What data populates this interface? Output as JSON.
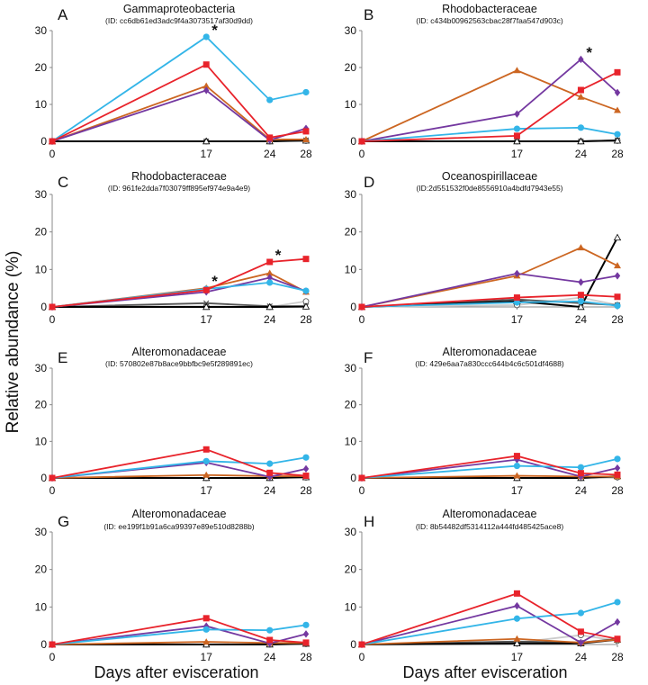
{
  "figure": {
    "ylabel": "Relative abundance (%)",
    "xlabel": "Days after evisceration"
  },
  "series_styles": [
    {
      "key": "cyan",
      "color": "#33b5e8",
      "marker": "circle"
    },
    {
      "key": "red",
      "color": "#e8232b",
      "marker": "square"
    },
    {
      "key": "orange",
      "color": "#cc6622",
      "marker": "triangle"
    },
    {
      "key": "purple",
      "color": "#7438a0",
      "marker": "diamond"
    },
    {
      "key": "gray",
      "color": "#bbbbbb",
      "marker": "circle-open"
    },
    {
      "key": "dark",
      "color": "#555555",
      "marker": "cross"
    },
    {
      "key": "black",
      "color": "#000000",
      "marker": "triangle-open"
    }
  ],
  "chart_data": [
    {
      "type": "line",
      "letter": "A",
      "title": "Gammaproteobacteria",
      "subtitle": "(ID: cc6db61ed3adc9f4a3073517af30d9dd)",
      "x": [
        0,
        17,
        24,
        28
      ],
      "xticks": [
        "0",
        "17",
        "24",
        "28"
      ],
      "ylim": [
        0,
        30
      ],
      "yticks": [
        "0",
        "10",
        "20",
        "30"
      ],
      "series": [
        {
          "style": "cyan",
          "values": [
            0,
            28.3,
            11.2,
            13.3
          ]
        },
        {
          "style": "red",
          "values": [
            0,
            20.8,
            1.0,
            2.7
          ]
        },
        {
          "style": "orange",
          "values": [
            0,
            15.0,
            0.5,
            0.5
          ]
        },
        {
          "style": "purple",
          "values": [
            0,
            13.8,
            0.3,
            3.5
          ]
        },
        {
          "style": "gray",
          "values": [
            0,
            0,
            0,
            0.2
          ]
        },
        {
          "style": "dark",
          "values": [
            0,
            0,
            0,
            0.3
          ]
        },
        {
          "style": "black",
          "values": [
            0,
            0,
            0,
            0.2
          ]
        }
      ],
      "annotations": [
        {
          "text": "*",
          "x": 17,
          "y": 28.3
        }
      ]
    },
    {
      "type": "line",
      "letter": "B",
      "title": "Rhodobacteraceae",
      "subtitle": "(ID: c434b00962563cbac28f7faa547d903c)",
      "x": [
        0,
        17,
        24,
        28
      ],
      "xticks": [
        "0",
        "17",
        "24",
        "28"
      ],
      "ylim": [
        0,
        30
      ],
      "yticks": [
        "0",
        "10",
        "20",
        "30"
      ],
      "series": [
        {
          "style": "cyan",
          "values": [
            0,
            3.4,
            3.7,
            1.9
          ]
        },
        {
          "style": "red",
          "values": [
            0,
            1.5,
            13.9,
            18.7
          ]
        },
        {
          "style": "orange",
          "values": [
            0,
            19.2,
            12.0,
            8.4
          ]
        },
        {
          "style": "purple",
          "values": [
            0,
            7.4,
            22.2,
            13.2
          ]
        },
        {
          "style": "gray",
          "values": [
            0,
            0,
            0,
            0.2
          ]
        },
        {
          "style": "dark",
          "values": [
            0,
            0,
            0,
            0.3
          ]
        },
        {
          "style": "black",
          "values": [
            0,
            0,
            0,
            0.2
          ]
        }
      ],
      "annotations": [
        {
          "text": "*",
          "x": 24,
          "y": 22.2
        }
      ]
    },
    {
      "type": "line",
      "letter": "C",
      "title": "Rhodobacteraceae",
      "subtitle": "(ID: 961fe2dda7f03079ff895ef974e9a4e9)",
      "x": [
        0,
        17,
        24,
        28
      ],
      "xticks": [
        "0",
        "17",
        "24",
        "28"
      ],
      "ylim": [
        0,
        30
      ],
      "yticks": [
        "0",
        "10",
        "20",
        "30"
      ],
      "series": [
        {
          "style": "cyan",
          "values": [
            0,
            4.8,
            6.5,
            4.3
          ]
        },
        {
          "style": "red",
          "values": [
            0,
            4.5,
            12.0,
            12.8
          ]
        },
        {
          "style": "orange",
          "values": [
            0,
            5.0,
            9.0,
            4.0
          ]
        },
        {
          "style": "purple",
          "values": [
            0,
            4.0,
            7.8,
            4.2
          ]
        },
        {
          "style": "gray",
          "values": [
            0,
            0.2,
            0,
            1.5
          ]
        },
        {
          "style": "dark",
          "values": [
            0,
            1.0,
            0.2,
            0.2
          ]
        },
        {
          "style": "black",
          "values": [
            0,
            0,
            0,
            0.1
          ]
        }
      ],
      "annotations": [
        {
          "text": "*",
          "x": 17,
          "y": 5.0
        },
        {
          "text": "*",
          "x": 24,
          "y": 12.0
        }
      ]
    },
    {
      "type": "line",
      "letter": "D",
      "title": "Oceanospirillaceae",
      "subtitle": "(ID:2d551532f0de8556910a4bdfd7943e55)",
      "x": [
        0,
        17,
        24,
        28
      ],
      "xticks": [
        "0",
        "17",
        "24",
        "28"
      ],
      "ylim": [
        0,
        30
      ],
      "yticks": [
        "0",
        "10",
        "20",
        "30"
      ],
      "series": [
        {
          "style": "cyan",
          "values": [
            0,
            1.2,
            1.5,
            0.3
          ]
        },
        {
          "style": "red",
          "values": [
            0,
            2.5,
            3.2,
            2.7
          ]
        },
        {
          "style": "orange",
          "values": [
            0,
            8.3,
            15.8,
            11.0
          ]
        },
        {
          "style": "purple",
          "values": [
            0,
            8.9,
            6.6,
            8.3
          ]
        },
        {
          "style": "gray",
          "values": [
            0,
            0.5,
            2.5,
            0.5
          ]
        },
        {
          "style": "dark",
          "values": [
            0,
            2.0,
            1.0,
            0.5
          ]
        },
        {
          "style": "black",
          "values": [
            0,
            1.5,
            0,
            18.5
          ]
        }
      ],
      "annotations": []
    },
    {
      "type": "line",
      "letter": "E",
      "title": "Alteromonadaceae",
      "subtitle": "(ID: 570802e87b8ace9bbfbc9e5f289891ec)",
      "x": [
        0,
        17,
        24,
        28
      ],
      "xticks": [
        "0",
        "17",
        "24",
        "28"
      ],
      "ylim": [
        0,
        30
      ],
      "yticks": [
        "0",
        "10",
        "20",
        "30"
      ],
      "series": [
        {
          "style": "cyan",
          "values": [
            0,
            4.6,
            3.9,
            5.6
          ]
        },
        {
          "style": "red",
          "values": [
            0,
            7.8,
            1.4,
            0.6
          ]
        },
        {
          "style": "orange",
          "values": [
            0,
            0.8,
            0.5,
            0.5
          ]
        },
        {
          "style": "purple",
          "values": [
            0,
            4.2,
            0.3,
            2.5
          ]
        },
        {
          "style": "gray",
          "values": [
            0,
            0,
            0,
            0.2
          ]
        },
        {
          "style": "dark",
          "values": [
            0,
            0,
            0,
            0.3
          ]
        },
        {
          "style": "black",
          "values": [
            0,
            0,
            0,
            0.2
          ]
        }
      ],
      "annotations": []
    },
    {
      "type": "line",
      "letter": "F",
      "title": "Alteromonadaceae",
      "subtitle": "(ID: 429e6aa7a830ccc644b4c6c501df4688)",
      "x": [
        0,
        17,
        24,
        28
      ],
      "xticks": [
        "0",
        "17",
        "24",
        "28"
      ],
      "ylim": [
        0,
        30
      ],
      "yticks": [
        "0",
        "10",
        "20",
        "30"
      ],
      "series": [
        {
          "style": "cyan",
          "values": [
            0,
            3.3,
            2.9,
            5.2
          ]
        },
        {
          "style": "red",
          "values": [
            0,
            6.0,
            1.3,
            0.9
          ]
        },
        {
          "style": "orange",
          "values": [
            0,
            0.6,
            0.4,
            0.4
          ]
        },
        {
          "style": "purple",
          "values": [
            0,
            5.0,
            0.4,
            2.7
          ]
        },
        {
          "style": "gray",
          "values": [
            0,
            0,
            0,
            0.2
          ]
        },
        {
          "style": "dark",
          "values": [
            0,
            0,
            0,
            0.3
          ]
        },
        {
          "style": "black",
          "values": [
            0,
            0,
            0,
            0.5
          ]
        }
      ],
      "annotations": []
    },
    {
      "type": "line",
      "letter": "G",
      "title": "Alteromonadaceae",
      "subtitle": "(ID: ee199f1b91a6ca99397e89e510d8288b)",
      "x": [
        0,
        17,
        24,
        28
      ],
      "xticks": [
        "0",
        "17",
        "24",
        "28"
      ],
      "ylim": [
        0,
        30
      ],
      "yticks": [
        "0",
        "10",
        "20",
        "30"
      ],
      "series": [
        {
          "style": "cyan",
          "values": [
            0,
            4.0,
            3.8,
            5.2
          ]
        },
        {
          "style": "red",
          "values": [
            0,
            7.0,
            1.2,
            0.5
          ]
        },
        {
          "style": "orange",
          "values": [
            0,
            0.7,
            0.4,
            0.4
          ]
        },
        {
          "style": "purple",
          "values": [
            0,
            4.9,
            0.3,
            2.8
          ]
        },
        {
          "style": "gray",
          "values": [
            0,
            0,
            0,
            0.2
          ]
        },
        {
          "style": "dark",
          "values": [
            0,
            0,
            0,
            0.3
          ]
        },
        {
          "style": "black",
          "values": [
            0,
            0,
            0,
            0.2
          ]
        }
      ],
      "annotations": []
    },
    {
      "type": "line",
      "letter": "H",
      "title": "Alteromonadaceae",
      "subtitle": "(ID: 8b54482df5314112a444fd485425ace8)",
      "x": [
        0,
        17,
        24,
        28
      ],
      "xticks": [
        "0",
        "17",
        "24",
        "28"
      ],
      "ylim": [
        0,
        30
      ],
      "yticks": [
        "0",
        "10",
        "20",
        "30"
      ],
      "series": [
        {
          "style": "cyan",
          "values": [
            0,
            6.9,
            8.4,
            11.3
          ]
        },
        {
          "style": "red",
          "values": [
            0,
            13.6,
            3.4,
            1.5
          ]
        },
        {
          "style": "orange",
          "values": [
            0,
            1.5,
            0.5,
            1.3
          ]
        },
        {
          "style": "purple",
          "values": [
            0,
            10.3,
            0.5,
            6.0
          ]
        },
        {
          "style": "gray",
          "values": [
            0,
            0.5,
            2.5,
            1.0
          ]
        },
        {
          "style": "dark",
          "values": [
            0,
            0.8,
            0.5,
            1.5
          ]
        },
        {
          "style": "black",
          "values": [
            0,
            0.3,
            0.3,
            1.3
          ]
        }
      ],
      "annotations": []
    }
  ]
}
